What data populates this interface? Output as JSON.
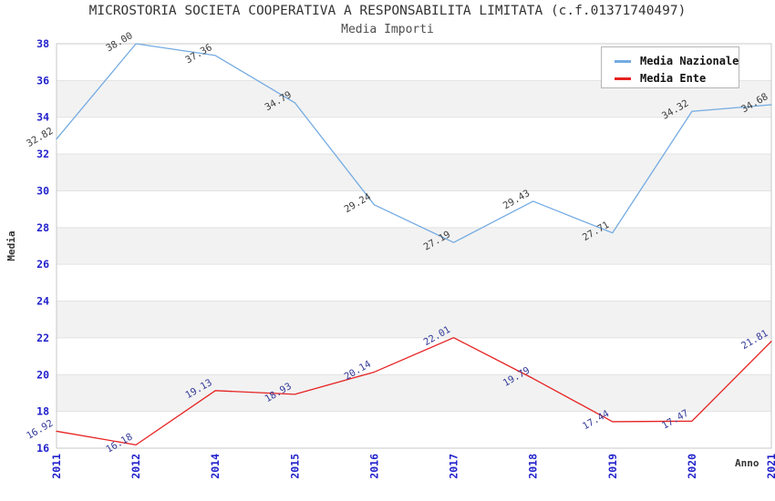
{
  "chart_data": {
    "type": "line",
    "title": "MICROSTORIA SOCIETA COOPERATIVA A RESPONSABILITA LIMITATA (c.f.01371740497)",
    "subtitle": "Media Importi",
    "xlabel": "Anno",
    "ylabel": "Media",
    "categories": [
      "2011",
      "2012",
      "2014",
      "2015",
      "2016",
      "2017",
      "2018",
      "2019",
      "2020",
      "2021"
    ],
    "series": [
      {
        "name": "Media Nazionale",
        "color": "#74abe2",
        "label_color": "#3d3d3d",
        "values": [
          32.82,
          38.0,
          37.36,
          34.79,
          29.24,
          27.19,
          29.43,
          27.71,
          34.32,
          34.68
        ]
      },
      {
        "name": "Media Ente",
        "color": "#e62222",
        "label_color": "#333a99",
        "values": [
          16.92,
          16.18,
          19.13,
          18.93,
          20.14,
          22.01,
          19.79,
          17.44,
          17.47,
          21.81
        ]
      }
    ],
    "ylim": [
      16,
      38
    ],
    "ytick_step": 2,
    "yticks": [
      16,
      18,
      20,
      22,
      24,
      26,
      28,
      30,
      32,
      34,
      36,
      38
    ],
    "shaded_bands": [
      [
        18,
        20
      ],
      [
        22,
        24
      ],
      [
        26,
        28
      ],
      [
        30,
        32
      ],
      [
        34,
        36
      ]
    ],
    "grid": true,
    "legend_position": "top-right",
    "band_color": "#f2f2f2",
    "gridline_color": "#e2e2e2",
    "border_color": "#c8c8c8",
    "tick_color": "#2222cc"
  }
}
